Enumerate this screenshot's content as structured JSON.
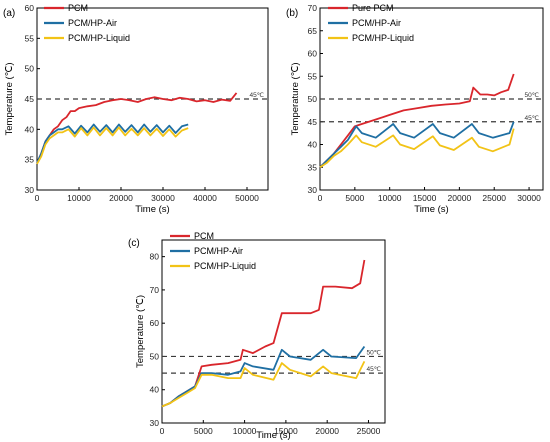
{
  "colors": {
    "red": "#d9262c",
    "blue": "#1f6fa3",
    "yellow": "#f2c316",
    "ref": "#3a3a3a",
    "axis": "#000000"
  },
  "chart_data": [
    {
      "panel_label": "(a)",
      "type": "line",
      "xlabel": "Time (s)",
      "ylabel": "Temperature (℃)",
      "xlim": [
        0,
        55000
      ],
      "ylim": [
        30,
        60
      ],
      "xticks": [
        0,
        10000,
        20000,
        30000,
        40000,
        50000
      ],
      "yticks": [
        30,
        35,
        40,
        45,
        50,
        55,
        60
      ],
      "legend_position": "top-left",
      "reference_lines": [
        {
          "y": 45,
          "label": "45℃"
        }
      ],
      "series": [
        {
          "name": "PCM",
          "color_key": "red",
          "x": [
            0,
            1000,
            2000,
            3000,
            4000,
            5000,
            6000,
            7000,
            8000,
            9000,
            10000,
            12000,
            14000,
            16000,
            18000,
            20000,
            22000,
            24000,
            26000,
            28000,
            30000,
            32000,
            34000,
            36000,
            38000,
            40000,
            42000,
            44000,
            46000,
            47500
          ],
          "y": [
            34.5,
            36,
            38,
            39,
            40,
            40.5,
            41.5,
            42,
            43,
            43,
            43.5,
            43.8,
            44,
            44.5,
            44.8,
            45,
            44.8,
            44.5,
            45,
            45.3,
            45,
            44.8,
            45.2,
            45,
            44.6,
            44.8,
            44.5,
            44.9,
            44.7,
            46
          ]
        },
        {
          "name": "PCM/HP-Air",
          "color_key": "blue",
          "x": [
            0,
            1000,
            2000,
            3000,
            4000,
            5000,
            6000,
            7500,
            9000,
            10500,
            12000,
            13500,
            15000,
            16500,
            18000,
            19500,
            21000,
            22500,
            24000,
            25500,
            27000,
            28500,
            30000,
            31500,
            33000,
            34500,
            36000
          ],
          "y": [
            34.5,
            36,
            38,
            39,
            39.5,
            40,
            40,
            40.5,
            39.3,
            40.6,
            39.5,
            40.8,
            39.6,
            40.7,
            39.5,
            40.8,
            39.6,
            40.7,
            39.5,
            40.8,
            39.6,
            40.7,
            39.5,
            40.6,
            39.4,
            40.5,
            40.8
          ]
        },
        {
          "name": "PCM/HP-Liquid",
          "color_key": "yellow",
          "x": [
            0,
            1000,
            2000,
            3000,
            4000,
            5000,
            6000,
            7500,
            9000,
            10500,
            12000,
            13500,
            15000,
            16500,
            18000,
            19500,
            21000,
            22500,
            24000,
            25500,
            27000,
            28500,
            30000,
            31500,
            33000,
            34500,
            36000
          ],
          "y": [
            34.3,
            35.5,
            37.5,
            38.5,
            39,
            39.5,
            39.5,
            40,
            38.8,
            40.2,
            39,
            40.3,
            39,
            40.2,
            39,
            40.3,
            39,
            40.1,
            39,
            40.2,
            39,
            40.1,
            38.9,
            40,
            38.8,
            39.8,
            40.2
          ]
        }
      ]
    },
    {
      "panel_label": "(b)",
      "type": "line",
      "xlabel": "Time (s)",
      "ylabel": "Temperature (℃)",
      "xlim": [
        0,
        32000
      ],
      "ylim": [
        30,
        70
      ],
      "xticks": [
        0,
        5000,
        10000,
        15000,
        20000,
        25000,
        30000
      ],
      "yticks": [
        30,
        35,
        40,
        45,
        50,
        55,
        60,
        65,
        70
      ],
      "legend_position": "top-left",
      "reference_lines": [
        {
          "y": 50,
          "label": "50℃"
        },
        {
          "y": 45,
          "label": "45℃"
        }
      ],
      "series": [
        {
          "name": "Pure PCM",
          "color_key": "red",
          "x": [
            0,
            1000,
            2000,
            3000,
            4000,
            5000,
            6000,
            8000,
            10000,
            12000,
            14000,
            16000,
            18000,
            20000,
            21500,
            22000,
            23000,
            24000,
            25000,
            26000,
            27000,
            27800
          ],
          "y": [
            35,
            36.5,
            38,
            40,
            42,
            44,
            44.5,
            45.5,
            46.5,
            47.5,
            48,
            48.5,
            48.8,
            49,
            49.5,
            52.5,
            51,
            51,
            50.8,
            51.5,
            52,
            55.5
          ]
        },
        {
          "name": "PCM/HP-Air",
          "color_key": "blue",
          "x": [
            0,
            1000,
            2000,
            3000,
            4000,
            5200,
            6000,
            8000,
            10500,
            11500,
            13500,
            16200,
            17200,
            19200,
            21800,
            22800,
            24800,
            27200,
            27800
          ],
          "y": [
            35,
            36.5,
            38,
            39.5,
            41,
            44,
            42.5,
            41.5,
            44.5,
            42.5,
            41.5,
            44.5,
            42.5,
            41.5,
            44.5,
            42.5,
            41.5,
            42.5,
            45
          ]
        },
        {
          "name": "PCM/HP-Liquid",
          "color_key": "yellow",
          "x": [
            0,
            1000,
            2000,
            3000,
            4000,
            5200,
            6000,
            8000,
            10500,
            11500,
            13500,
            16200,
            17200,
            19200,
            21800,
            22800,
            24800,
            27200,
            27800
          ],
          "y": [
            35,
            36,
            37.5,
            38.5,
            40,
            42,
            40.5,
            39.5,
            42,
            40,
            39,
            41.8,
            39.8,
            38.8,
            41.5,
            39.5,
            38.5,
            40,
            43.5
          ]
        }
      ]
    },
    {
      "panel_label": "(c)",
      "type": "line",
      "xlabel": "Time (s)",
      "ylabel": "Temperature (℃)",
      "xlim": [
        0,
        27000
      ],
      "ylim": [
        30,
        85
      ],
      "xticks": [
        0,
        5000,
        10000,
        15000,
        20000,
        25000
      ],
      "yticks": [
        30,
        40,
        50,
        60,
        70,
        80
      ],
      "legend_position": "top-left",
      "reference_lines": [
        {
          "y": 50,
          "label": "50℃"
        },
        {
          "y": 45,
          "label": "45℃"
        }
      ],
      "series": [
        {
          "name": "PCM",
          "color_key": "red",
          "x": [
            0,
            1000,
            2000,
            3000,
            4000,
            4800,
            6000,
            8000,
            9500,
            9800,
            11000,
            12500,
            13500,
            14500,
            16000,
            18000,
            19000,
            19500,
            21000,
            23000,
            24000,
            24500
          ],
          "y": [
            35,
            36,
            38,
            39.5,
            41,
            47,
            47.5,
            48,
            49,
            52,
            51,
            53,
            54,
            63,
            63,
            63,
            64,
            71,
            71,
            70.5,
            72,
            79
          ]
        },
        {
          "name": "PCM/HP-Air",
          "color_key": "blue",
          "x": [
            0,
            1000,
            2000,
            3000,
            4000,
            4800,
            6000,
            8000,
            9500,
            10000,
            11000,
            13500,
            14500,
            15500,
            18000,
            19500,
            20500,
            23500,
            24500
          ],
          "y": [
            35,
            36,
            38,
            39.5,
            41,
            45,
            45,
            44.5,
            45.5,
            48,
            47,
            46,
            52,
            50,
            49,
            52,
            50,
            49.5,
            53
          ]
        },
        {
          "name": "PCM/HP-Liquid",
          "color_key": "yellow",
          "x": [
            0,
            1000,
            2000,
            3000,
            4000,
            4800,
            6000,
            8000,
            9500,
            10000,
            11000,
            13500,
            14500,
            15500,
            18000,
            19500,
            20500,
            23500,
            24500
          ],
          "y": [
            35,
            36,
            37.5,
            39,
            40.5,
            44.5,
            44.5,
            43.5,
            43.5,
            46.5,
            44.5,
            43,
            48,
            46,
            44,
            47,
            45,
            43.5,
            48.5
          ]
        }
      ]
    }
  ]
}
